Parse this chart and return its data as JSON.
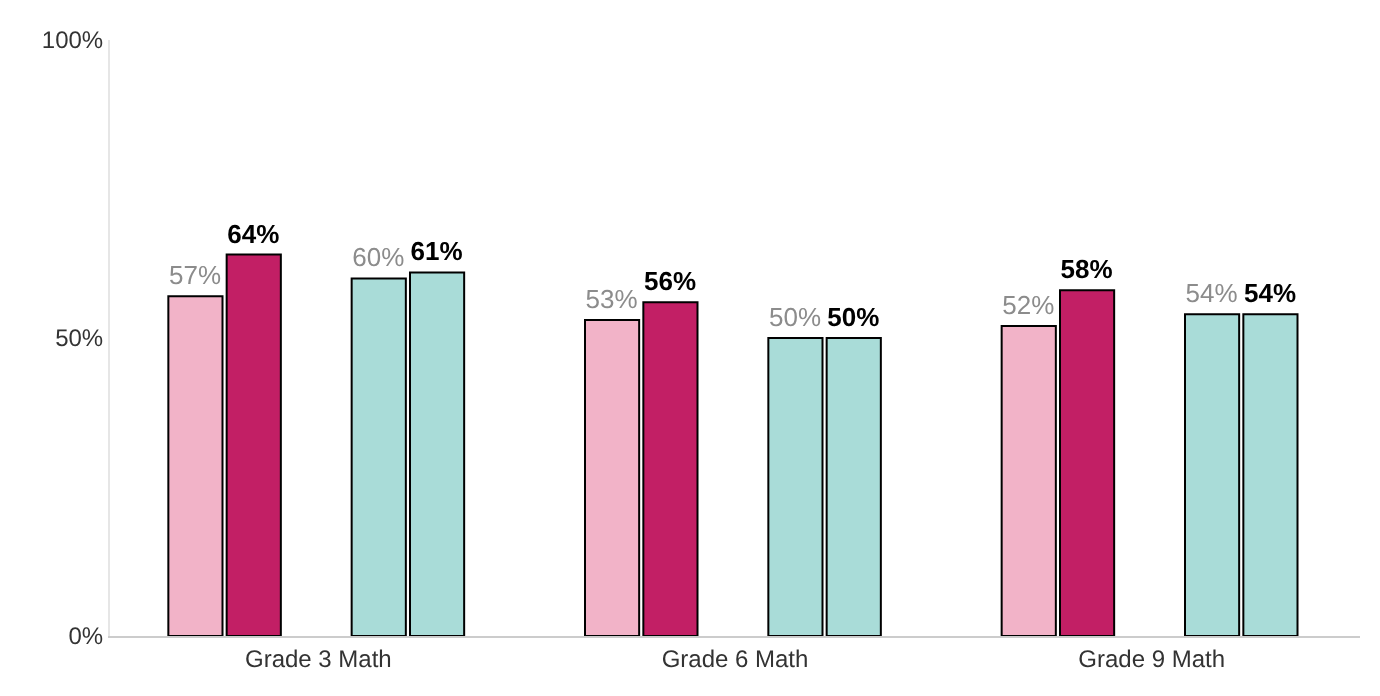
{
  "chart_data": {
    "type": "bar",
    "categories": [
      "Grade 3 Math",
      "Grade 6 Math",
      "Grade 9 Math"
    ],
    "series": [
      {
        "color": "#f2b3c8",
        "values": [
          57,
          53,
          52
        ],
        "value_labels": [
          "57%",
          "53%",
          "52%"
        ]
      },
      {
        "color": "#c21f65",
        "values": [
          64,
          56,
          58
        ],
        "value_labels": [
          "64%",
          "56%",
          "58%"
        ]
      },
      {
        "color": "#a9dcd8",
        "values": [
          60,
          50,
          54
        ],
        "value_labels": [
          "60%",
          "50%",
          "54%"
        ]
      },
      {
        "color": "#a9dcd8",
        "values": [
          61,
          50,
          54
        ],
        "value_labels": [
          "61%",
          "50%",
          "54%"
        ]
      }
    ],
    "ylim": [
      0,
      100
    ],
    "yticks": [
      {
        "value": 0,
        "label": "0%"
      },
      {
        "value": 50,
        "label": "50%"
      },
      {
        "value": 100,
        "label": "100%"
      }
    ],
    "data_labels": true
  }
}
